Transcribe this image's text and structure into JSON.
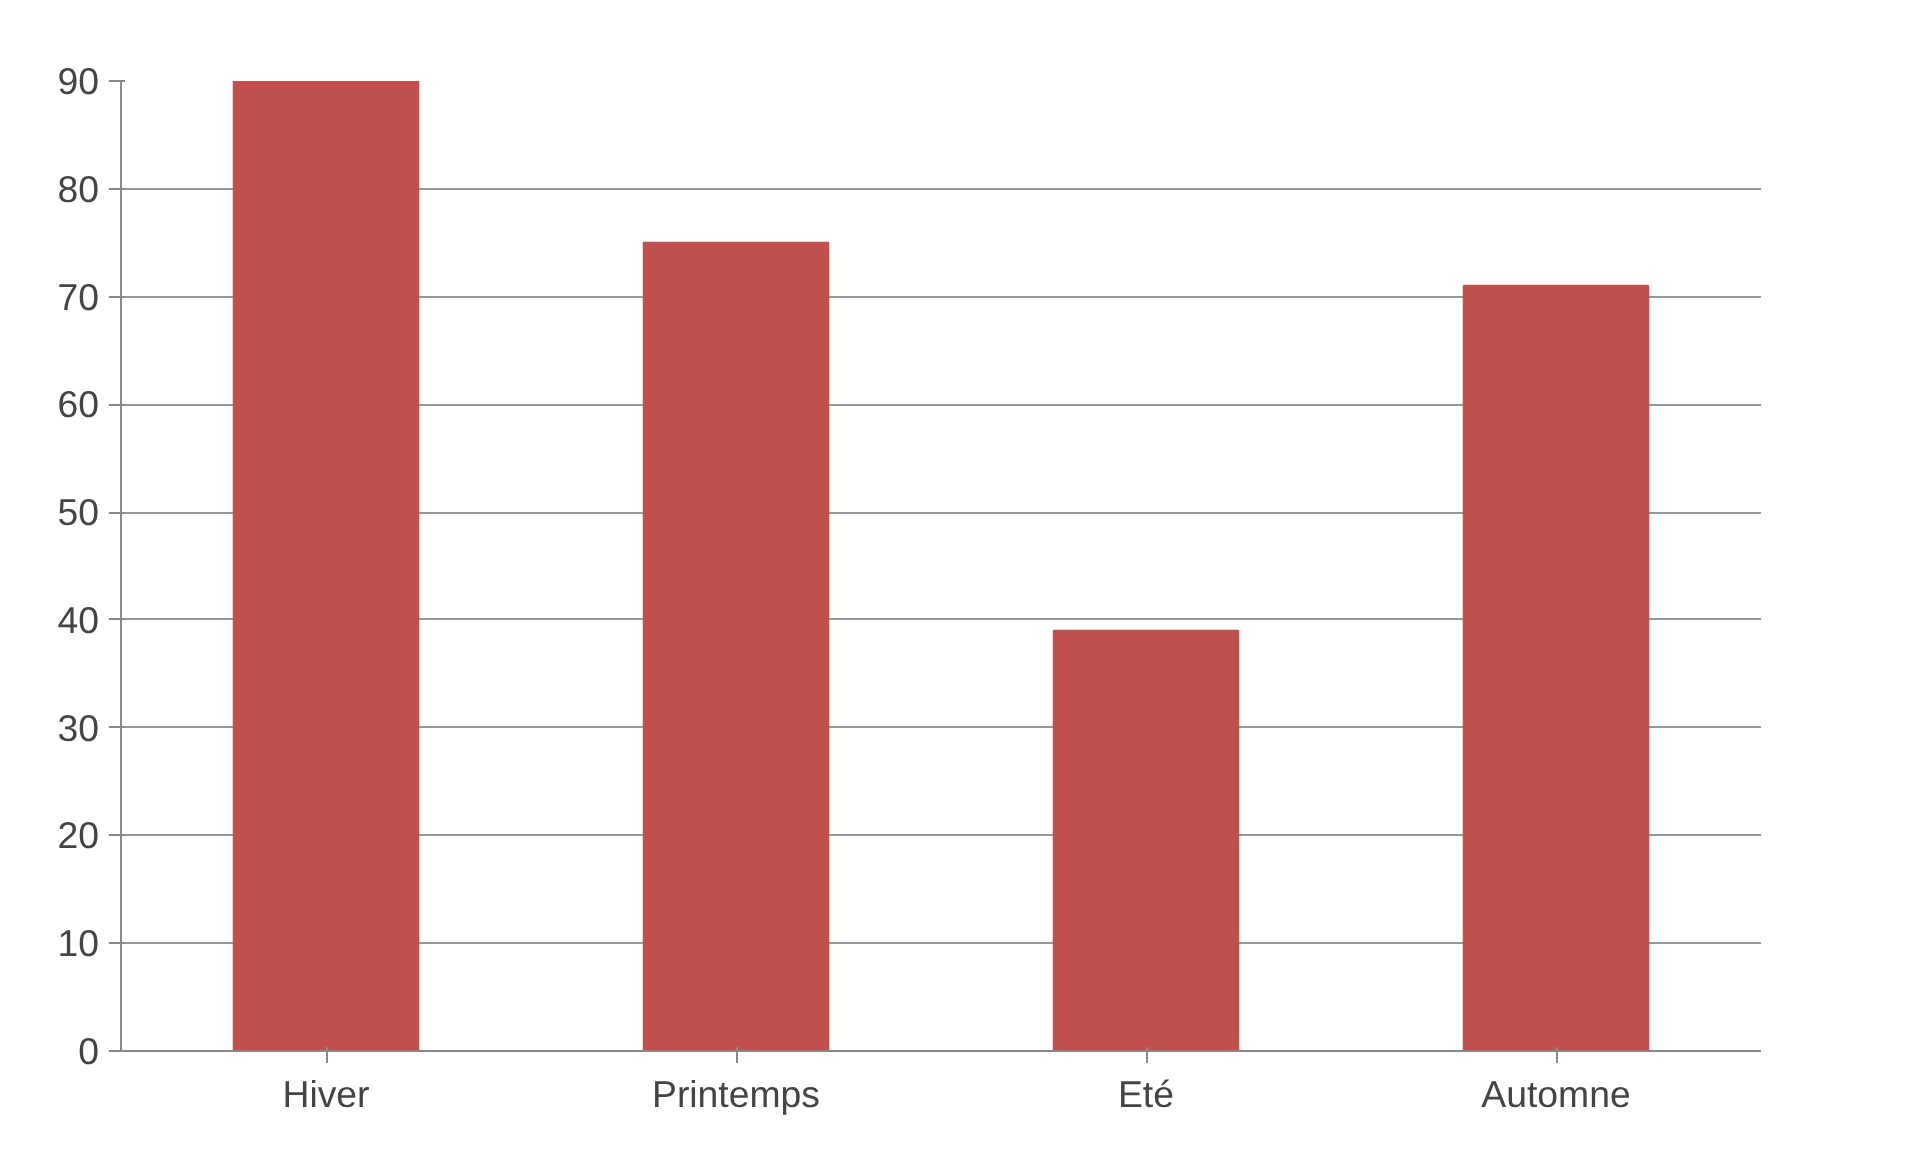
{
  "chart_data": {
    "type": "bar",
    "categories": [
      "Hiver",
      "Printemps",
      "Eté",
      "Automne"
    ],
    "values": [
      90,
      75,
      39,
      71
    ],
    "color": "#c0504d",
    "ylim": [
      0,
      90
    ],
    "yticks": [
      0,
      10,
      20,
      30,
      40,
      50,
      60,
      70,
      80,
      90
    ],
    "grid": "y"
  }
}
